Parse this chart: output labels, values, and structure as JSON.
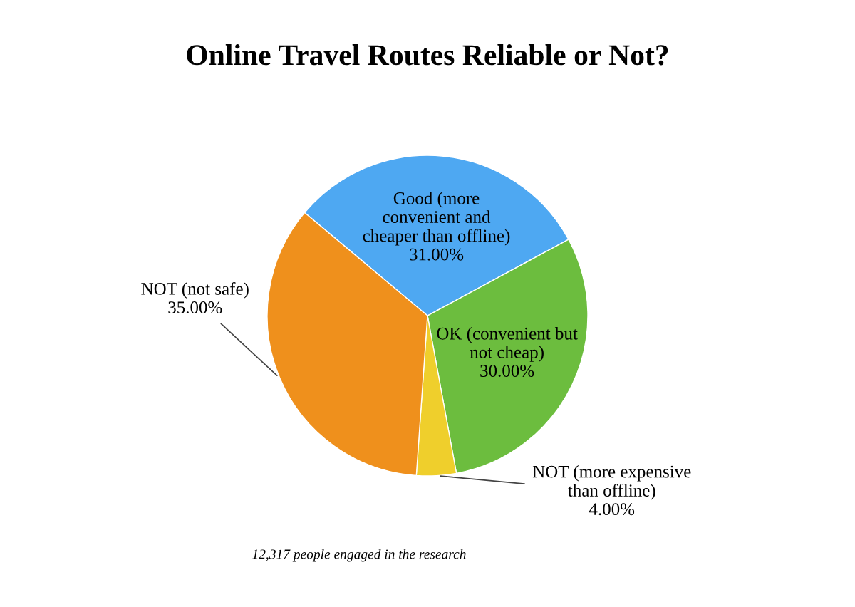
{
  "chart_data": {
    "type": "pie",
    "title": "Online Travel Routes Reliable or Not?",
    "categories": [
      "Good (more\nconvenient and\ncheaper than offline)",
      "OK (convenient but\nnot cheap)",
      "NOT (more expensive\nthan offline)",
      "NOT (not safe)"
    ],
    "values": [
      31,
      30,
      4,
      35
    ],
    "value_labels": [
      "31.00%",
      "30.00%",
      "4.00%",
      "35.00%"
    ],
    "colors": [
      "#4ea8f2",
      "#6cbd3e",
      "#efcf2c",
      "#ef901c"
    ],
    "annotations": [
      "12,317 people engaged in the research"
    ]
  }
}
